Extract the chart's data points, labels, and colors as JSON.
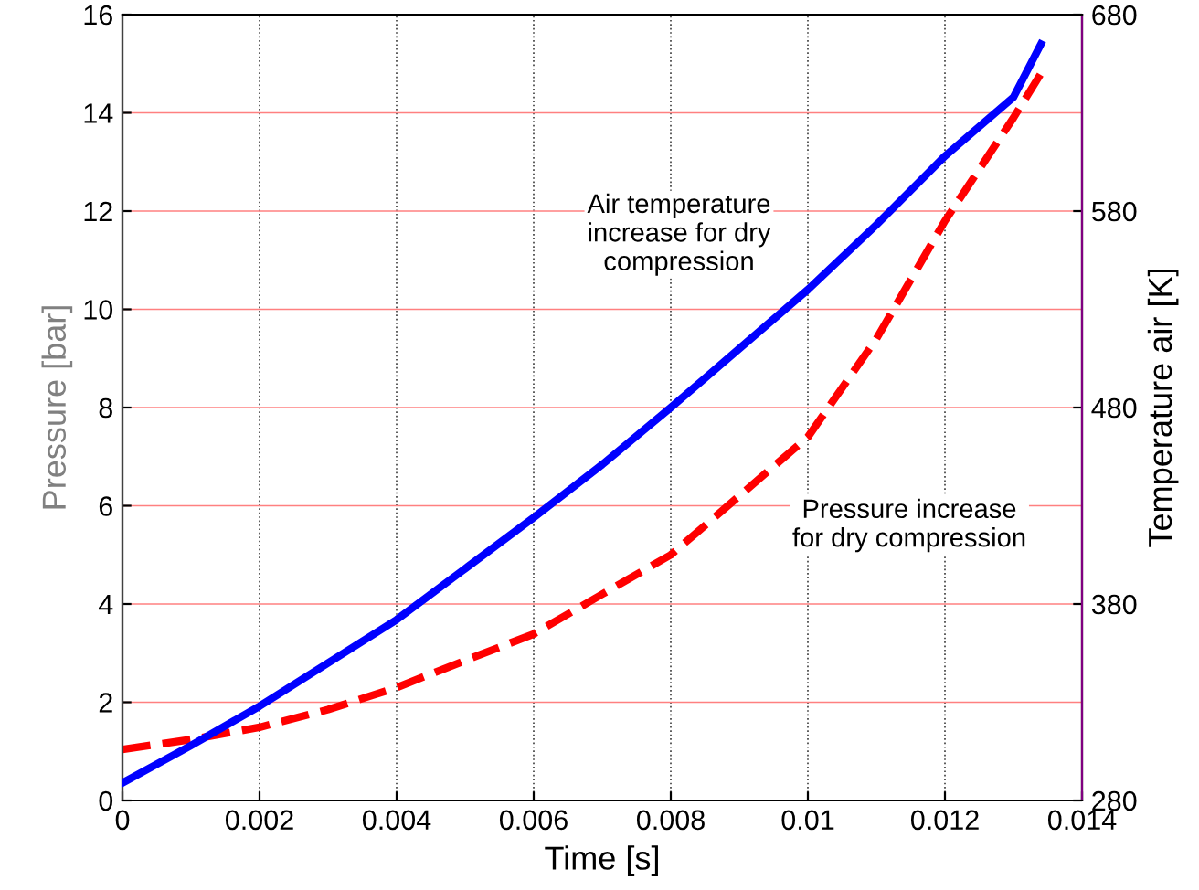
{
  "chart_data": {
    "type": "line",
    "xlabel": "Time [s]",
    "ylabel": "Pressure [bar]",
    "y2label": "Temperature air [K]",
    "xlim": [
      0,
      0.014
    ],
    "xticks": [
      0,
      0.002,
      0.004,
      0.006,
      0.008,
      0.01,
      0.012,
      0.014
    ],
    "ylim": [
      0,
      16
    ],
    "yticks": [
      0,
      2,
      4,
      6,
      8,
      10,
      12,
      14,
      16
    ],
    "y2lim": [
      280,
      680
    ],
    "y2ticks": [
      280,
      380,
      480,
      580,
      680
    ],
    "grid": true,
    "legend": false,
    "series": [
      {
        "color": "#0000ff",
        "axis": "y2",
        "line_style": "solid",
        "x": [
          0,
          0.001,
          0.002,
          0.003,
          0.004,
          0.005,
          0.006,
          0.007,
          0.008,
          0.009,
          0.01,
          0.011,
          0.012,
          0.013,
          0.0134
        ],
        "values": [
          289,
          308,
          328,
          350,
          372,
          398,
          424,
          451,
          480,
          510,
          540,
          573,
          608,
          638,
          665
        ]
      },
      {
        "color": "#ff0000",
        "axis": "y",
        "line_style": "dashed",
        "x": [
          0,
          0.001,
          0.002,
          0.003,
          0.004,
          0.005,
          0.006,
          0.007,
          0.008,
          0.009,
          0.01,
          0.011,
          0.012,
          0.013,
          0.0134
        ],
        "values": [
          1.04,
          1.24,
          1.49,
          1.85,
          2.3,
          2.85,
          3.39,
          4.2,
          5.0,
          6.2,
          7.4,
          9.4,
          11.8,
          13.9,
          14.8
        ]
      }
    ],
    "annotations": [
      "Air temperature\nincrease for dry\ncompression",
      "Pressure increase\nfor dry compression"
    ]
  }
}
